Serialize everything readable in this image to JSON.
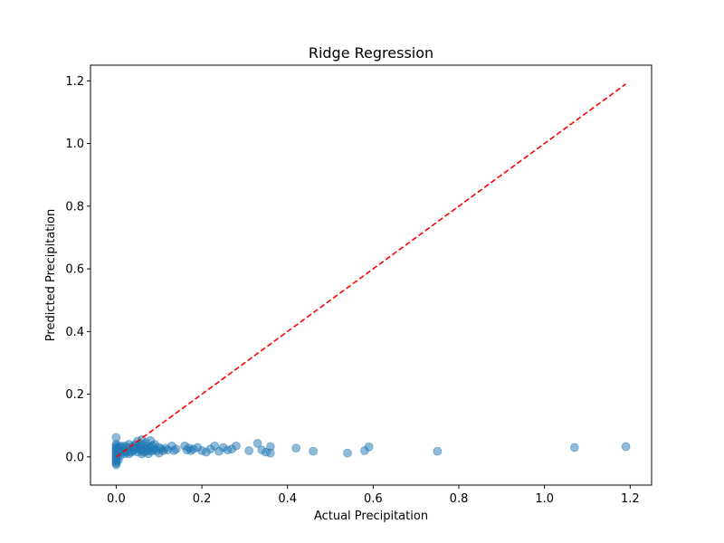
{
  "chart_data": {
    "type": "scatter",
    "title": "Ridge Regression",
    "xlabel": "Actual Precipitation",
    "ylabel": "Predicted Precipitation",
    "xlim": [
      -0.06,
      1.25
    ],
    "ylim": [
      -0.09,
      1.25
    ],
    "x_ticks": [
      "0.0",
      "0.2",
      "0.4",
      "0.6",
      "0.8",
      "1.0",
      "1.2"
    ],
    "x_tick_values": [
      0.0,
      0.2,
      0.4,
      0.6,
      0.8,
      1.0,
      1.2
    ],
    "y_ticks": [
      "0.0",
      "0.2",
      "0.4",
      "0.6",
      "0.8",
      "1.0",
      "1.2"
    ],
    "y_tick_values": [
      0.0,
      0.2,
      0.4,
      0.6,
      0.8,
      1.0,
      1.2
    ],
    "grid": false,
    "legend": "none",
    "marker_color": "#1f77b4",
    "marker_alpha": 0.5,
    "reference_line": {
      "style": "dashed",
      "color": "#ff0000",
      "from": [
        0.0,
        0.0
      ],
      "to": [
        1.19,
        1.19
      ]
    },
    "series": [
      {
        "points": [
          [
            0.0,
            0.062
          ],
          [
            0.0,
            0.04
          ],
          [
            0.0,
            0.035
          ],
          [
            0.0,
            0.03
          ],
          [
            0.0,
            0.025
          ],
          [
            0.0,
            0.02
          ],
          [
            0.0,
            0.015
          ],
          [
            0.0,
            0.01
          ],
          [
            0.0,
            0.005
          ],
          [
            0.0,
            0.0
          ],
          [
            0.0,
            -0.005
          ],
          [
            0.0,
            -0.01
          ],
          [
            0.0,
            -0.015
          ],
          [
            0.0,
            -0.02
          ],
          [
            0.0,
            -0.025
          ],
          [
            0.005,
            0.03
          ],
          [
            0.005,
            0.01
          ],
          [
            0.005,
            -0.01
          ],
          [
            0.01,
            0.035
          ],
          [
            0.01,
            0.02
          ],
          [
            0.01,
            0.005
          ],
          [
            0.015,
            0.03
          ],
          [
            0.015,
            0.015
          ],
          [
            0.02,
            0.035
          ],
          [
            0.02,
            0.02
          ],
          [
            0.02,
            0.01
          ],
          [
            0.025,
            0.03
          ],
          [
            0.025,
            0.015
          ],
          [
            0.03,
            0.04
          ],
          [
            0.03,
            0.025
          ],
          [
            0.03,
            0.01
          ],
          [
            0.035,
            0.03
          ],
          [
            0.035,
            0.015
          ],
          [
            0.04,
            0.035
          ],
          [
            0.04,
            0.02
          ],
          [
            0.045,
            0.025
          ],
          [
            0.045,
            0.04
          ],
          [
            0.05,
            0.03
          ],
          [
            0.05,
            0.015
          ],
          [
            0.05,
            0.05
          ],
          [
            0.055,
            0.025
          ],
          [
            0.055,
            0.035
          ],
          [
            0.06,
            0.02
          ],
          [
            0.06,
            0.04
          ],
          [
            0.06,
            0.01
          ],
          [
            0.06,
            0.055
          ],
          [
            0.065,
            0.03
          ],
          [
            0.065,
            0.015
          ],
          [
            0.07,
            0.035
          ],
          [
            0.07,
            0.02
          ],
          [
            0.07,
            0.045
          ],
          [
            0.075,
            0.025
          ],
          [
            0.075,
            0.01
          ],
          [
            0.08,
            0.03
          ],
          [
            0.08,
            0.052
          ],
          [
            0.08,
            0.018
          ],
          [
            0.085,
            0.035
          ],
          [
            0.085,
            0.02
          ],
          [
            0.09,
            0.025
          ],
          [
            0.09,
            0.04
          ],
          [
            0.095,
            0.02
          ],
          [
            0.1,
            0.03
          ],
          [
            0.1,
            0.012
          ],
          [
            0.105,
            0.025
          ],
          [
            0.11,
            0.02
          ],
          [
            0.115,
            0.028
          ],
          [
            0.12,
            0.022
          ],
          [
            0.13,
            0.035
          ],
          [
            0.135,
            0.02
          ],
          [
            0.14,
            0.025
          ],
          [
            0.16,
            0.035
          ],
          [
            0.165,
            0.022
          ],
          [
            0.17,
            0.028
          ],
          [
            0.175,
            0.02
          ],
          [
            0.18,
            0.025
          ],
          [
            0.19,
            0.03
          ],
          [
            0.2,
            0.02
          ],
          [
            0.21,
            0.015
          ],
          [
            0.22,
            0.025
          ],
          [
            0.23,
            0.035
          ],
          [
            0.24,
            0.018
          ],
          [
            0.25,
            0.03
          ],
          [
            0.26,
            0.022
          ],
          [
            0.27,
            0.025
          ],
          [
            0.28,
            0.035
          ],
          [
            0.31,
            0.02
          ],
          [
            0.33,
            0.043
          ],
          [
            0.34,
            0.022
          ],
          [
            0.35,
            0.015
          ],
          [
            0.36,
            0.033
          ],
          [
            0.36,
            0.012
          ],
          [
            0.42,
            0.028
          ],
          [
            0.46,
            0.018
          ],
          [
            0.54,
            0.012
          ],
          [
            0.58,
            0.02
          ],
          [
            0.59,
            0.032
          ],
          [
            0.75,
            0.018
          ],
          [
            1.07,
            0.03
          ],
          [
            1.19,
            0.033
          ]
        ]
      }
    ]
  }
}
